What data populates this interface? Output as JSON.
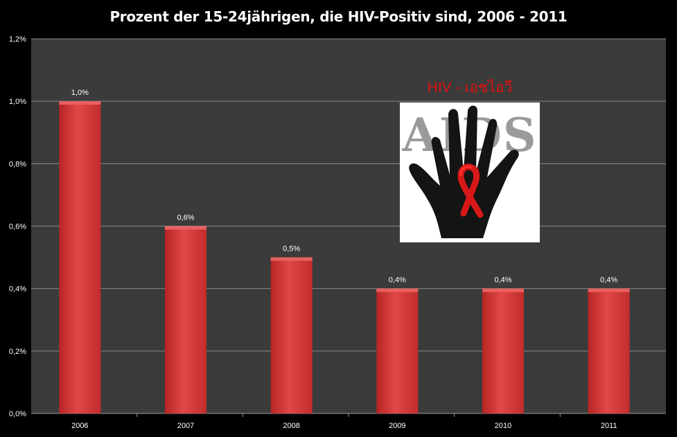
{
  "chart_data": {
    "type": "bar",
    "title": "Prozent der 15-24jährigen, die HIV-Positiv sind, 2006 - 2011",
    "categories": [
      "2006",
      "2007",
      "2008",
      "2009",
      "2010",
      "2011"
    ],
    "values": [
      1.0,
      0.6,
      0.5,
      0.4,
      0.4,
      0.4
    ],
    "data_labels": [
      "1,0%",
      "0,6%",
      "0,5%",
      "0,4%",
      "0,4%",
      "0,4%"
    ],
    "ylim": [
      0,
      1.2
    ],
    "yticks": [
      0,
      0.2,
      0.4,
      0.6,
      0.8,
      1.0,
      1.2
    ],
    "ytick_labels": [
      "0,0%",
      "0,2%",
      "0,4%",
      "0,6%",
      "0,8%",
      "1,0%",
      "1,2%"
    ],
    "xlabel": "",
    "ylabel": "",
    "grid": true,
    "legend": false,
    "colors": {
      "bar": "#d63a3a",
      "bar_highlight": "#e86060",
      "plot_background": "#3d3d3d",
      "gridline": "#8a8a8a",
      "text": "#ffffff"
    }
  },
  "image": {
    "caption": "HIV - เอชไอวี",
    "logo_text": "AIDS",
    "icons": [
      "hand-icon",
      "red-ribbon-icon"
    ]
  }
}
